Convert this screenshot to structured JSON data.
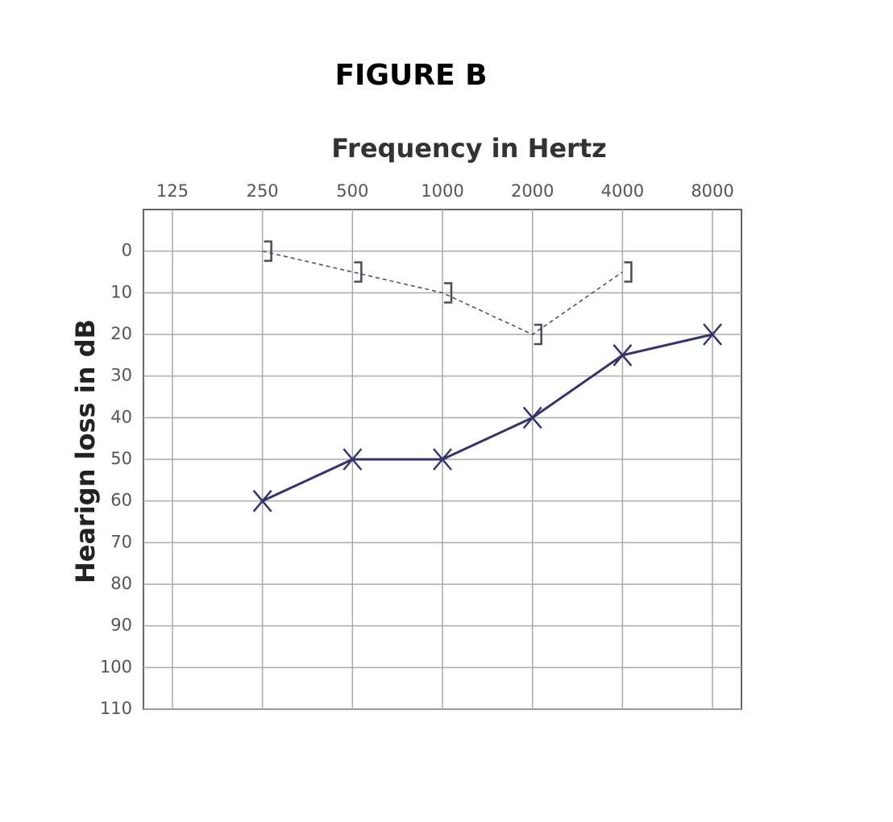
{
  "chart_data": {
    "type": "line",
    "title": "FIGURE B",
    "x_label": "Frequency in Hertz",
    "y_label": "Hearign loss in dB",
    "xlim": [
      100,
      10000
    ],
    "xticks": [
      125,
      250,
      500,
      1000,
      2000,
      4000,
      8000
    ],
    "x_log": true,
    "ylim": [
      -10,
      110
    ],
    "yticks": [
      0,
      10,
      20,
      30,
      40,
      50,
      60,
      70,
      80,
      90,
      100,
      110
    ],
    "y_inverted": true,
    "grid": true,
    "series": [
      {
        "color": "#34346a",
        "marker": "x",
        "dashed": false,
        "x": [
          250,
          500,
          1000,
          2000,
          4000,
          8000
        ],
        "values": [
          60,
          50,
          50,
          40,
          25,
          20
        ]
      },
      {
        "color": "#4a4a5a",
        "marker": "bracket",
        "dashed": true,
        "x": [
          250,
          500,
          1000,
          2000,
          4000
        ],
        "values": [
          0,
          5,
          10,
          20,
          5
        ]
      }
    ]
  }
}
